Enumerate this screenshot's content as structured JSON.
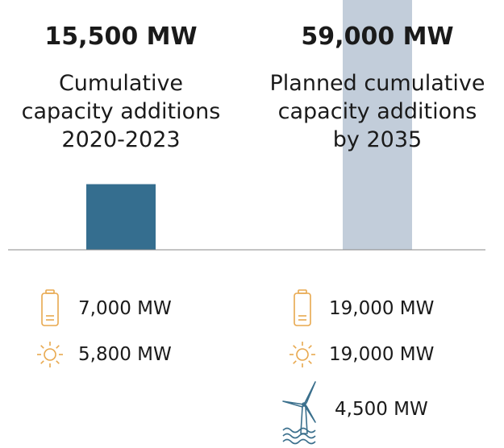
{
  "chart_data": {
    "type": "bar",
    "categories": [
      "Cumulative\ncapacity additions\n2020-2023",
      "Planned cumulative\ncapacity additions\nby 2035"
    ],
    "values": [
      15500,
      59000
    ],
    "value_labels": [
      "15,500 MW",
      "59,000 MW"
    ],
    "colors": [
      "#356e8f",
      "#c2cdda"
    ],
    "ylim": [
      0,
      59000
    ],
    "breakdown": [
      [
        {
          "icon": "battery",
          "label": "7,000 MW"
        },
        {
          "icon": "sun",
          "label": "5,800 MW"
        }
      ],
      [
        {
          "icon": "battery",
          "label": "19,000 MW"
        },
        {
          "icon": "sun",
          "label": "19,000 MW"
        },
        {
          "icon": "wind",
          "label": "4,500 MW"
        }
      ]
    ]
  }
}
